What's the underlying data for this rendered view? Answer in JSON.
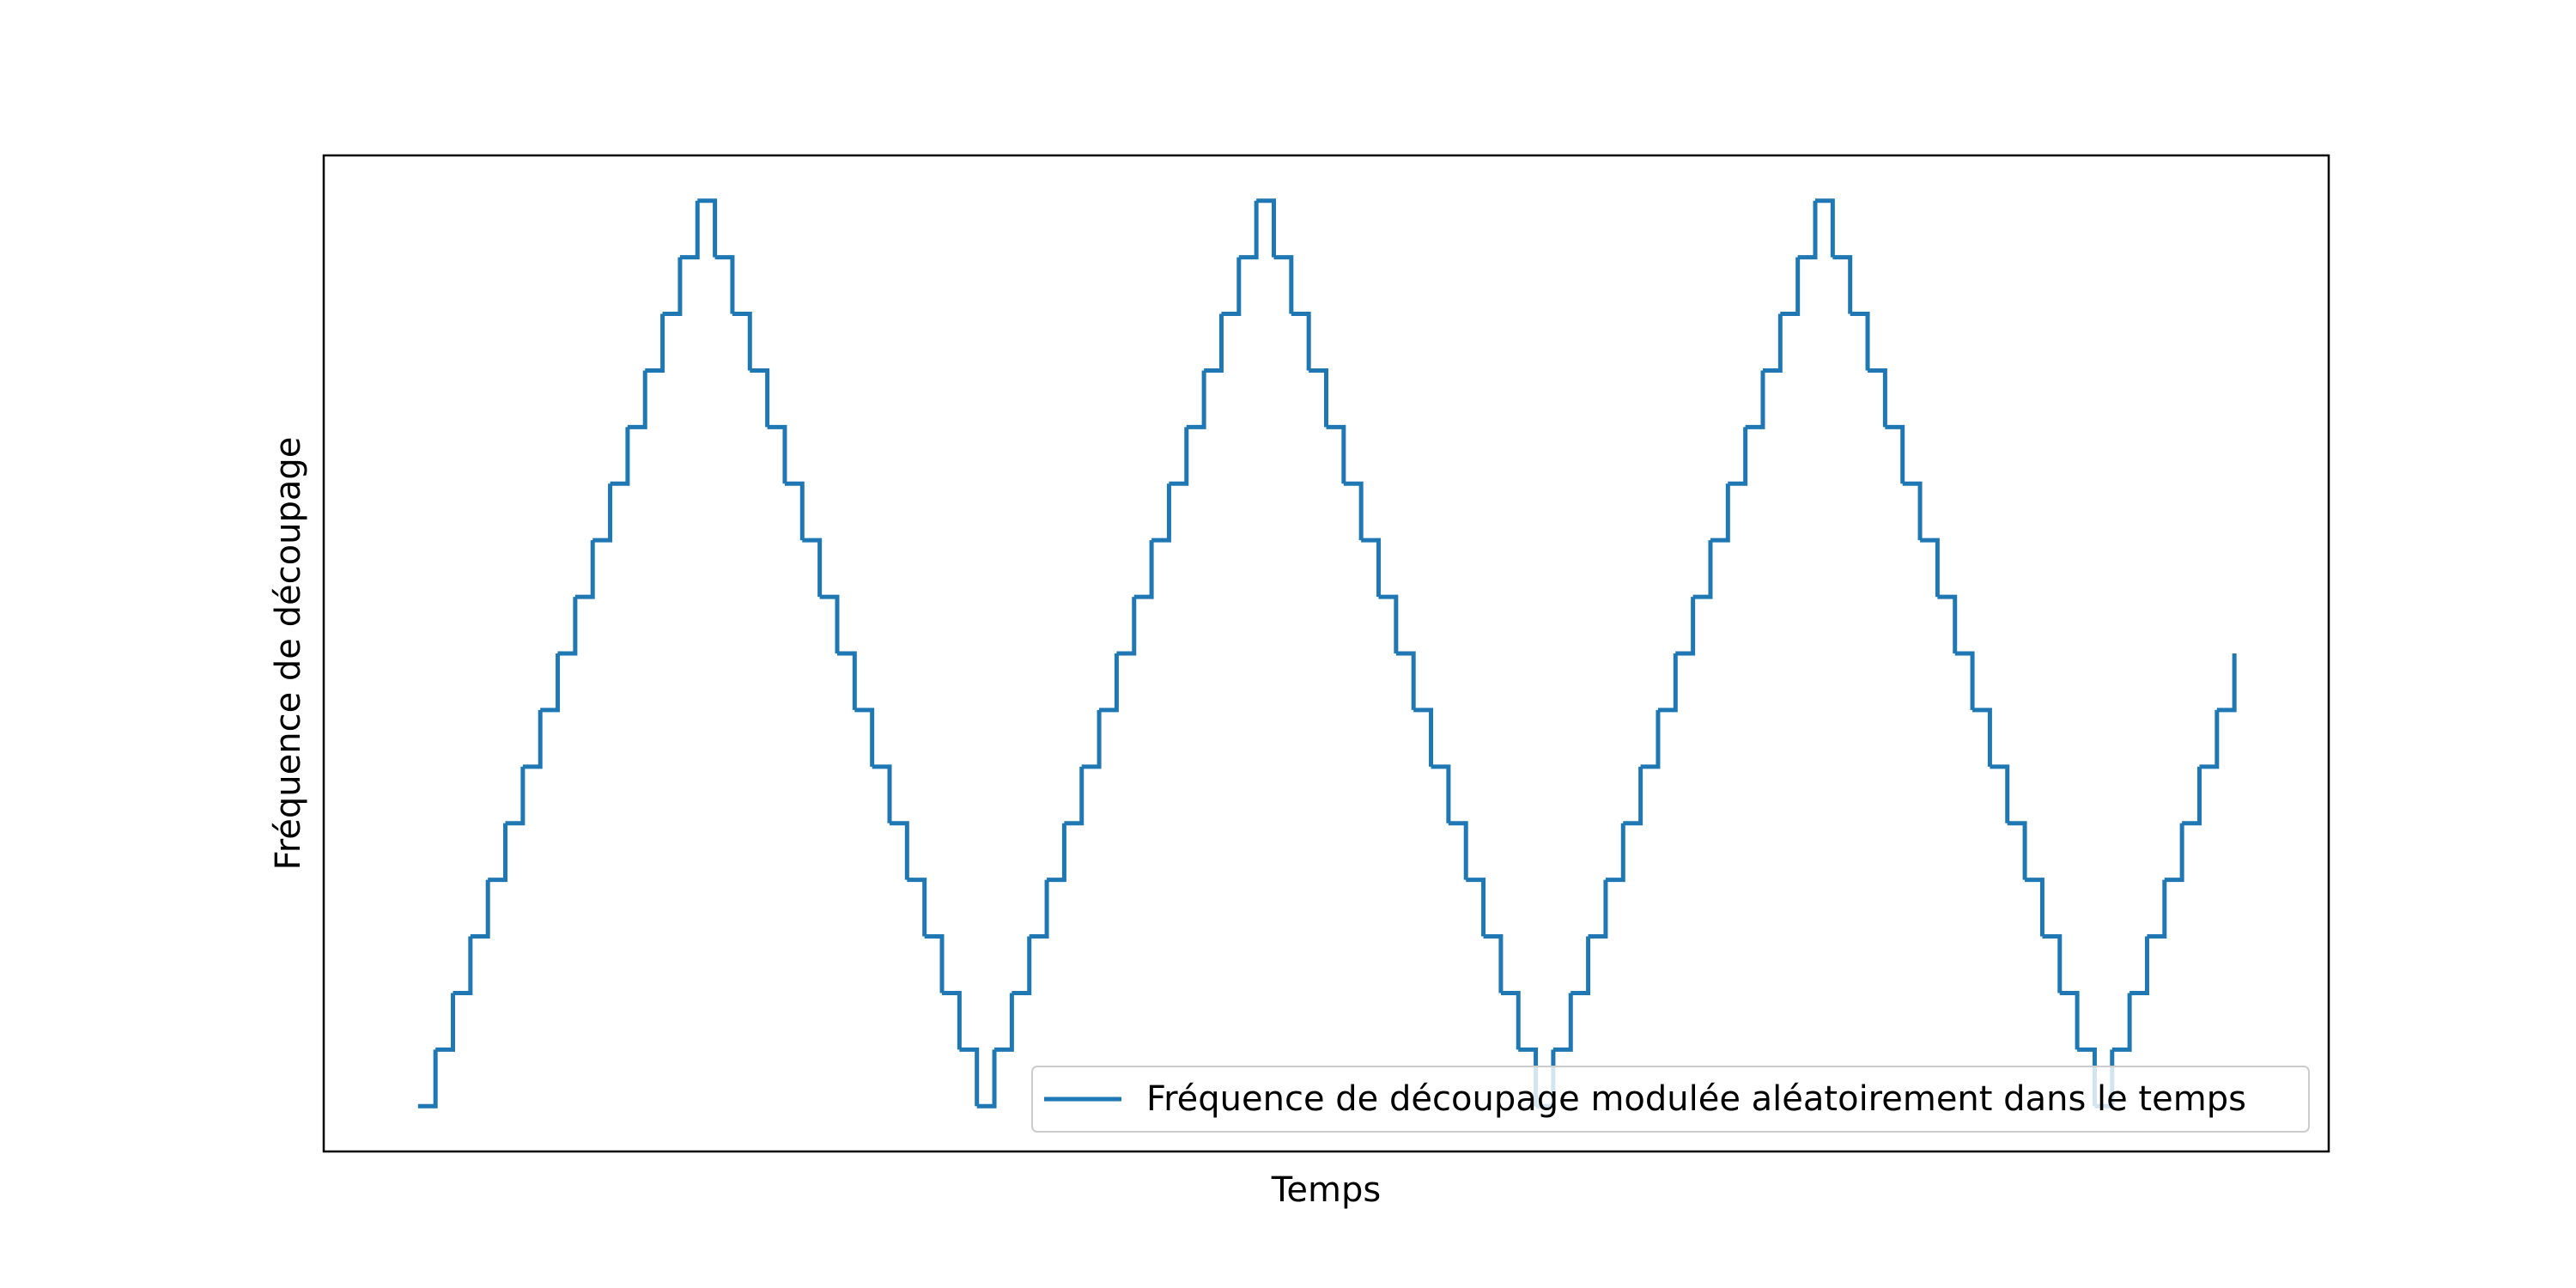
{
  "chart_data": {
    "type": "line",
    "title": "",
    "xlabel": "Temps",
    "ylabel": "Fréquence de découpage",
    "xlim": [
      -2.7,
      54.7
    ],
    "ylim": [
      -0.8,
      16.8
    ],
    "grid": false,
    "legend_position": "lower right",
    "x_ticks_visible": false,
    "y_ticks_visible": false,
    "series": [
      {
        "name": "Fréquence de découpage modulée aléatoirement dans le temps",
        "color": "#1f77b4",
        "step": "post",
        "x": [
          0,
          0.5,
          1,
          1.5,
          2,
          2.5,
          3,
          3.5,
          4,
          4.5,
          5,
          5.5,
          6,
          6.5,
          7,
          7.5,
          8,
          8.5,
          9,
          9.5,
          10,
          10.5,
          11,
          11.5,
          12,
          12.5,
          13,
          13.5,
          14,
          14.5,
          15,
          15.5,
          16,
          16.5,
          17,
          17.5,
          18,
          18.5,
          19,
          19.5,
          20,
          20.5,
          21,
          21.5,
          22,
          22.5,
          23,
          23.5,
          24,
          24.5,
          25,
          25.5,
          26,
          26.5,
          27,
          27.5,
          28,
          28.5,
          29,
          29.5,
          30,
          30.5,
          31,
          31.5,
          32,
          32.5,
          33,
          33.5,
          34,
          34.5,
          35,
          35.5,
          36,
          36.5,
          37,
          37.5,
          38,
          38.5,
          39,
          39.5,
          40,
          40.5,
          41,
          41.5,
          42,
          42.5,
          43,
          43.5,
          44,
          44.5,
          45,
          45.5,
          46,
          46.5,
          47,
          47.5,
          48,
          48.5,
          49,
          49.5,
          50,
          50.5,
          51,
          51.5,
          52
        ],
        "y": [
          0,
          1,
          2,
          3,
          4,
          5,
          6,
          7,
          8,
          9,
          10,
          11,
          12,
          13,
          14,
          15,
          16,
          15,
          14,
          13,
          12,
          11,
          10,
          9,
          8,
          7,
          6,
          5,
          4,
          3,
          2,
          1,
          0,
          1,
          2,
          3,
          4,
          5,
          6,
          7,
          8,
          9,
          10,
          11,
          12,
          13,
          14,
          15,
          16,
          15,
          14,
          13,
          12,
          11,
          10,
          9,
          8,
          7,
          6,
          5,
          4,
          3,
          2,
          1,
          0,
          1,
          2,
          3,
          4,
          5,
          6,
          7,
          8,
          9,
          10,
          11,
          12,
          13,
          14,
          15,
          16,
          15,
          14,
          13,
          12,
          11,
          10,
          9,
          8,
          7,
          6,
          5,
          4,
          3,
          2,
          1,
          0,
          1,
          2,
          3,
          4,
          5,
          6,
          7,
          8
        ]
      }
    ]
  }
}
